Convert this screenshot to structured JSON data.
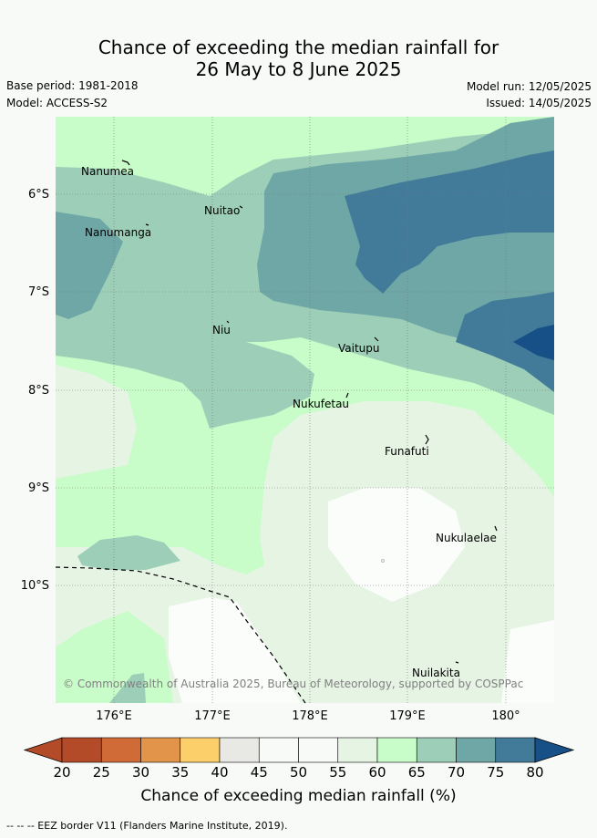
{
  "title_line1": "Chance of exceeding the median rainfall for",
  "title_line2": "26 May to 8 June 2025",
  "base_period": "Base period: 1981-2018",
  "model": "Model: ACCESS-S2",
  "model_run": "Model run: 12/05/2025",
  "issued": "Issued: 14/05/2025",
  "lat_labels": [
    "6°S",
    "7°S",
    "8°S",
    "9°S",
    "10°S"
  ],
  "lon_labels": [
    "176°E",
    "177°E",
    "178°E",
    "179°E",
    "180°"
  ],
  "places": {
    "nanumea": "Nanumea",
    "nuitao": "Nuitao",
    "nanumanga": "Nanumanga",
    "niu": "Niu",
    "vaitupu": "Vaitupu",
    "nukufetau": "Nukufetau",
    "funafuti": "Funafuti",
    "nukulaelae": "Nukulaelae",
    "nuilakita": "Nuilakita"
  },
  "copyright": "© Commonwealth of Australia 2025, Bureau of Meteorology, supported by COSPPac",
  "colorbar": {
    "ticks": [
      "20",
      "25",
      "30",
      "35",
      "40",
      "45",
      "50",
      "55",
      "60",
      "65",
      "70",
      "75",
      "80"
    ],
    "colors": [
      "#b34a28",
      "#d06a36",
      "#e2944a",
      "#fdcf6b",
      "#e8e8e4",
      "#f8faf8",
      "#f8faf8",
      "#e6f4e4",
      "#c8fcc8",
      "#9dcfb8",
      "#6fa7a6",
      "#427b9a",
      "#174f87"
    ],
    "title": "Chance of exceeding median rainfall (%)"
  },
  "footnote": "--  --  -- EEZ border V11 (Flanders Marine Institute, 2019)."
}
